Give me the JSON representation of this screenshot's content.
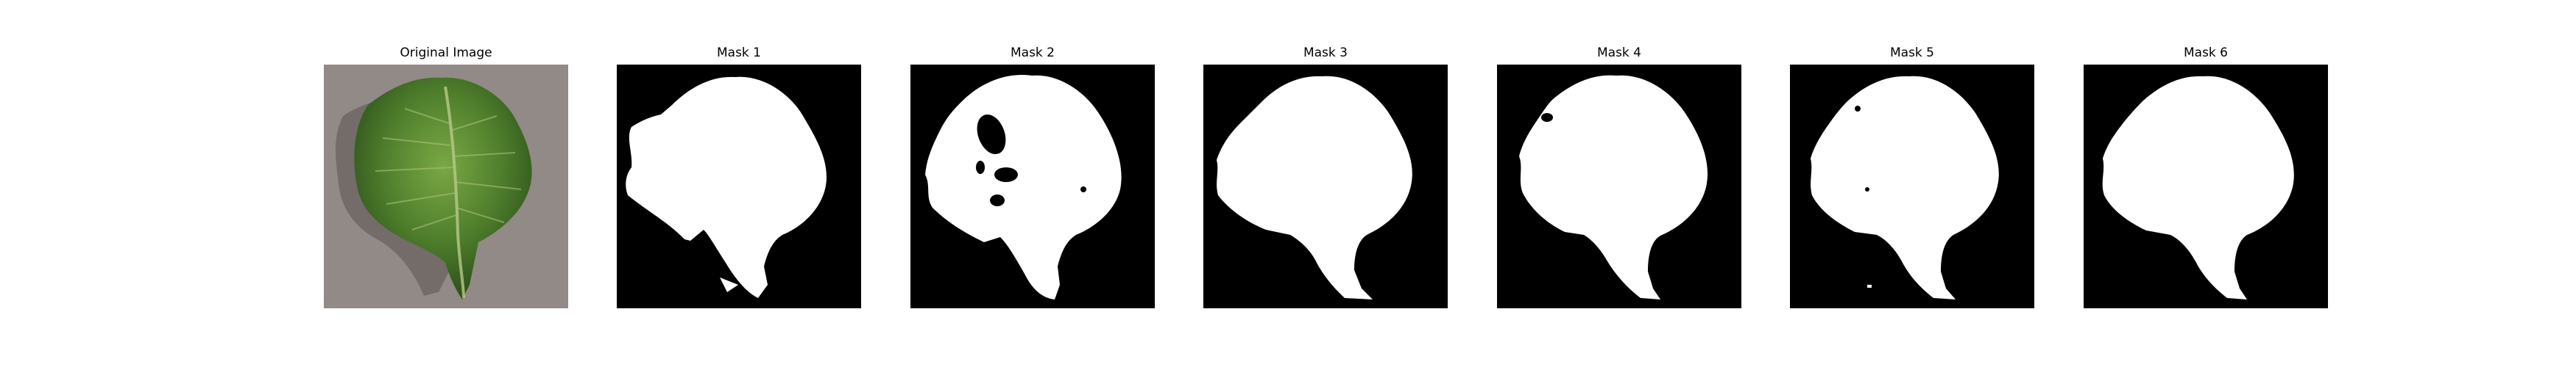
{
  "panels": [
    {
      "title": "Original Image",
      "kind": "photo",
      "content": "green leaf on gray pavement"
    },
    {
      "title": "Mask 1",
      "kind": "mask"
    },
    {
      "title": "Mask 2",
      "kind": "mask"
    },
    {
      "title": "Mask 3",
      "kind": "mask"
    },
    {
      "title": "Mask 4",
      "kind": "mask"
    },
    {
      "title": "Mask 5",
      "kind": "mask"
    },
    {
      "title": "Mask 6",
      "kind": "mask"
    }
  ],
  "colors": {
    "mask_background": "#000000",
    "mask_foreground": "#ffffff",
    "pavement": "#8e8683",
    "leaf_dark": "#2f5a1f",
    "leaf_light": "#6f9c3b"
  }
}
